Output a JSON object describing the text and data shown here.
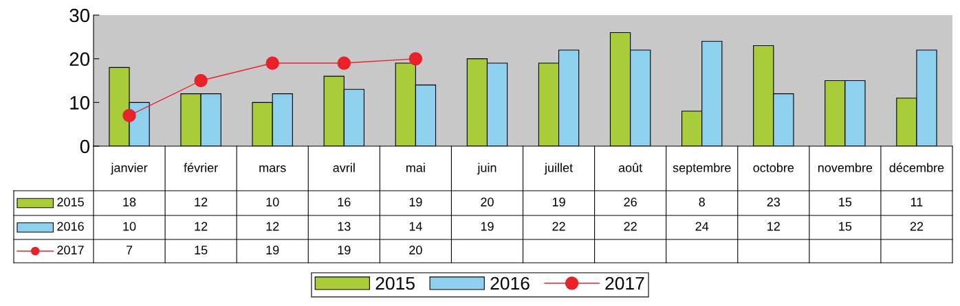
{
  "chart_data": {
    "type": "bar",
    "categories": [
      "janvier",
      "février",
      "mars",
      "avril",
      "mai",
      "juin",
      "juillet",
      "août",
      "septembre",
      "octobre",
      "novembre",
      "décembre"
    ],
    "series": [
      {
        "name": "2015",
        "color": "#a8cc3a",
        "values": [
          18,
          12,
          10,
          16,
          19,
          20,
          19,
          26,
          8,
          23,
          15,
          11
        ]
      },
      {
        "name": "2016",
        "color": "#8fd0ef",
        "values": [
          10,
          12,
          12,
          13,
          14,
          19,
          22,
          22,
          24,
          12,
          15,
          22
        ]
      },
      {
        "name": "2017",
        "type": "line",
        "color": "#e8222a",
        "marker": "circle",
        "values": [
          7,
          15,
          19,
          19,
          20,
          null,
          null,
          null,
          null,
          null,
          null,
          null
        ]
      }
    ],
    "ylim": [
      0,
      30
    ],
    "yticks": [
      0,
      10,
      20,
      30
    ],
    "grid": false,
    "legend": "bottom",
    "data_labels": true
  }
}
